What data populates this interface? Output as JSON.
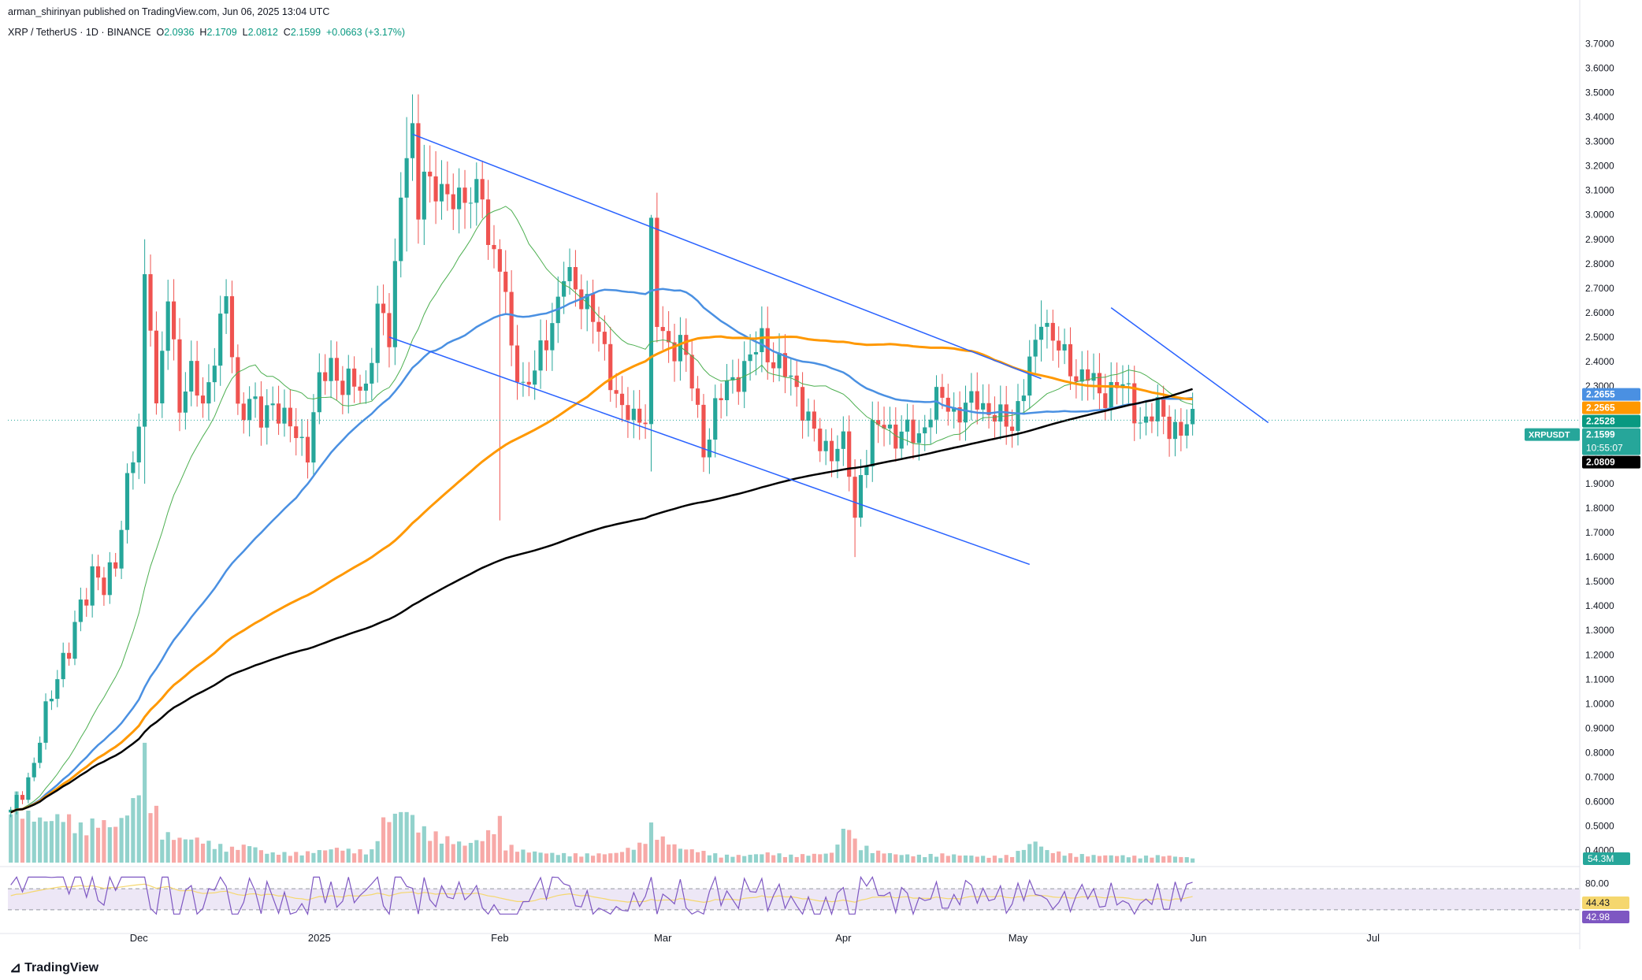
{
  "header": {
    "publisher": "arman_shirinyan published on TradingView.com, Jun 06, 2025 13:04 UTC",
    "symbol": "XRP / TetherUS · 1D · BINANCE",
    "o_label": "O",
    "o": "2.0936",
    "h_label": "H",
    "h": "2.1709",
    "l_label": "L",
    "l": "2.0812",
    "c_label": "C",
    "c": "2.1599",
    "change": "+0.0663 (+3.17%)"
  },
  "footer": {
    "brand": "TradingView"
  },
  "colors": {
    "up": "#26a69a",
    "down": "#ef5350",
    "up_vol": "#92d2cc",
    "down_vol": "#f7a9a7",
    "ma_green": "#4caf50",
    "ma_blue": "#4a90e2",
    "ma_orange": "#ff9800",
    "ma_black": "#000000",
    "trendline": "#2962ff",
    "rsi_line": "#7e57c2",
    "rsi_ma": "#f5d76e",
    "rsi_band": "#ede7f6"
  },
  "chart_data": {
    "type": "candlestick",
    "ylim": [
      0.35,
      3.75
    ],
    "price_ticks": [
      "3.7000",
      "3.6000",
      "3.5000",
      "3.4000",
      "3.3000",
      "3.2000",
      "3.1000",
      "3.0000",
      "2.9000",
      "2.8000",
      "2.7000",
      "2.6000",
      "2.5000",
      "2.4000",
      "2.3000",
      "2.2000",
      "2.1000",
      "2.0000",
      "1.9000",
      "1.8000",
      "1.7000",
      "1.6000",
      "1.5000",
      "1.4000",
      "1.3000",
      "1.2000",
      "1.1000",
      "1.0000",
      "0.9000",
      "0.8000",
      "0.7000",
      "0.6000",
      "0.5000",
      "0.4000"
    ],
    "x_labels": [
      {
        "label": "Dec",
        "day": 22
      },
      {
        "label": "2025",
        "day": 53
      },
      {
        "label": "Feb",
        "day": 84
      },
      {
        "label": "Mar",
        "day": 112
      },
      {
        "label": "Apr",
        "day": 143
      },
      {
        "label": "May",
        "day": 173
      },
      {
        "label": "Jun",
        "day": 204
      },
      {
        "label": "Jul",
        "day": 234
      }
    ],
    "markers": [
      {
        "label": "XRPUSDT",
        "value": "2.1599",
        "extra": "10:55:07",
        "y": 2.1599,
        "color": "#26a69a"
      },
      {
        "label": "",
        "value": "2.2655",
        "y": 2.2655,
        "color": "#4a90e2"
      },
      {
        "label": "",
        "value": "2.2565",
        "y": 2.2565,
        "color": "#ff9800"
      },
      {
        "label": "",
        "value": "2.2528",
        "y": 2.2528,
        "color": "#089981"
      },
      {
        "label": "",
        "value": "2.0809",
        "y": 2.0809,
        "color": "#000000"
      }
    ],
    "volume_label": "54.3M",
    "rsi": {
      "value": "42.98",
      "ma": "44.43",
      "upper": "80.00",
      "levels": [
        70,
        30
      ]
    },
    "anchors": [
      [
        0,
        0.55
      ],
      [
        2,
        0.65
      ],
      [
        4,
        0.75
      ],
      [
        6,
        0.95
      ],
      [
        8,
        1.15
      ],
      [
        10,
        1.2
      ],
      [
        12,
        1.4
      ],
      [
        14,
        1.55
      ],
      [
        16,
        1.45
      ],
      [
        18,
        1.6
      ],
      [
        20,
        1.9
      ],
      [
        22,
        2.1
      ],
      [
        23,
        2.75
      ],
      [
        24,
        2.6
      ],
      [
        25,
        2.2
      ],
      [
        27,
        2.65
      ],
      [
        29,
        2.25
      ],
      [
        31,
        2.35
      ],
      [
        33,
        2.2
      ],
      [
        35,
        2.45
      ],
      [
        37,
        2.65
      ],
      [
        39,
        2.2
      ],
      [
        41,
        2.25
      ],
      [
        43,
        2.15
      ],
      [
        45,
        2.25
      ],
      [
        47,
        2.15
      ],
      [
        49,
        2.1
      ],
      [
        51,
        2.05
      ],
      [
        53,
        2.3
      ],
      [
        55,
        2.4
      ],
      [
        57,
        2.3
      ],
      [
        59,
        2.3
      ],
      [
        61,
        2.3
      ],
      [
        63,
        2.6
      ],
      [
        65,
        2.5
      ],
      [
        67,
        3.1
      ],
      [
        68,
        3.25
      ],
      [
        69,
        3.3
      ],
      [
        70,
        3.0
      ],
      [
        71,
        3.2
      ],
      [
        73,
        3.1
      ],
      [
        75,
        3.05
      ],
      [
        77,
        3.1
      ],
      [
        79,
        3.05
      ],
      [
        81,
        3.1
      ],
      [
        82,
        2.9
      ],
      [
        84,
        2.8
      ],
      [
        86,
        2.45
      ],
      [
        88,
        2.3
      ],
      [
        90,
        2.35
      ],
      [
        92,
        2.5
      ],
      [
        94,
        2.65
      ],
      [
        95,
        2.75
      ],
      [
        97,
        2.7
      ],
      [
        99,
        2.65
      ],
      [
        101,
        2.5
      ],
      [
        103,
        2.35
      ],
      [
        105,
        2.2
      ],
      [
        107,
        2.15
      ],
      [
        109,
        2.2
      ],
      [
        110,
        2.95
      ],
      [
        111,
        2.55
      ],
      [
        113,
        2.45
      ],
      [
        115,
        2.5
      ],
      [
        117,
        2.3
      ],
      [
        119,
        2.05
      ],
      [
        121,
        2.2
      ],
      [
        123,
        2.3
      ],
      [
        125,
        2.35
      ],
      [
        127,
        2.4
      ],
      [
        129,
        2.5
      ],
      [
        131,
        2.4
      ],
      [
        133,
        2.35
      ],
      [
        135,
        2.3
      ],
      [
        137,
        2.15
      ],
      [
        139,
        2.05
      ],
      [
        141,
        2.05
      ],
      [
        143,
        2.05
      ],
      [
        144,
        1.95
      ],
      [
        145,
        1.75
      ],
      [
        146,
        1.95
      ],
      [
        148,
        2.1
      ],
      [
        150,
        2.15
      ],
      [
        152,
        2.1
      ],
      [
        154,
        2.1
      ],
      [
        156,
        2.1
      ],
      [
        158,
        2.2
      ],
      [
        160,
        2.25
      ],
      [
        162,
        2.2
      ],
      [
        164,
        2.2
      ],
      [
        166,
        2.25
      ],
      [
        168,
        2.2
      ],
      [
        170,
        2.15
      ],
      [
        172,
        2.15
      ],
      [
        174,
        2.3
      ],
      [
        176,
        2.45
      ],
      [
        177,
        2.6
      ],
      [
        179,
        2.5
      ],
      [
        181,
        2.4
      ],
      [
        183,
        2.35
      ],
      [
        185,
        2.35
      ],
      [
        187,
        2.25
      ],
      [
        189,
        2.3
      ],
      [
        191,
        2.3
      ],
      [
        193,
        2.2
      ],
      [
        195,
        2.15
      ],
      [
        197,
        2.2
      ],
      [
        199,
        2.15
      ],
      [
        201,
        2.1
      ],
      [
        203,
        2.16
      ]
    ],
    "volume_anchors": [
      [
        0,
        0.6
      ],
      [
        3,
        0.4
      ],
      [
        6,
        0.35
      ],
      [
        9,
        0.4
      ],
      [
        12,
        0.3
      ],
      [
        15,
        0.35
      ],
      [
        18,
        0.3
      ],
      [
        21,
        0.5
      ],
      [
        23,
        0.9
      ],
      [
        24,
        0.6
      ],
      [
        26,
        0.25
      ],
      [
        29,
        0.2
      ],
      [
        32,
        0.2
      ],
      [
        35,
        0.15
      ],
      [
        38,
        0.12
      ],
      [
        41,
        0.15
      ],
      [
        44,
        0.08
      ],
      [
        47,
        0.08
      ],
      [
        50,
        0.08
      ],
      [
        53,
        0.1
      ],
      [
        56,
        0.12
      ],
      [
        59,
        0.1
      ],
      [
        62,
        0.1
      ],
      [
        64,
        0.35
      ],
      [
        66,
        0.4
      ],
      [
        68,
        0.45
      ],
      [
        70,
        0.3
      ],
      [
        72,
        0.25
      ],
      [
        75,
        0.2
      ],
      [
        78,
        0.15
      ],
      [
        81,
        0.2
      ],
      [
        84,
        0.35
      ],
      [
        85,
        0.15
      ],
      [
        88,
        0.1
      ],
      [
        92,
        0.08
      ],
      [
        96,
        0.07
      ],
      [
        100,
        0.07
      ],
      [
        104,
        0.08
      ],
      [
        108,
        0.15
      ],
      [
        110,
        0.3
      ],
      [
        112,
        0.2
      ],
      [
        115,
        0.12
      ],
      [
        118,
        0.1
      ],
      [
        122,
        0.06
      ],
      [
        126,
        0.06
      ],
      [
        130,
        0.08
      ],
      [
        134,
        0.06
      ],
      [
        138,
        0.07
      ],
      [
        141,
        0.08
      ],
      [
        144,
        0.35
      ],
      [
        145,
        0.18
      ],
      [
        148,
        0.1
      ],
      [
        152,
        0.07
      ],
      [
        156,
        0.06
      ],
      [
        160,
        0.07
      ],
      [
        164,
        0.06
      ],
      [
        168,
        0.05
      ],
      [
        172,
        0.06
      ],
      [
        176,
        0.18
      ],
      [
        178,
        0.1
      ],
      [
        182,
        0.07
      ],
      [
        186,
        0.06
      ],
      [
        190,
        0.06
      ],
      [
        194,
        0.05
      ],
      [
        198,
        0.06
      ],
      [
        203,
        0.04
      ]
    ],
    "wicks_highlight": [
      [
        23,
        2.9,
        1.9
      ],
      [
        68,
        3.4,
        2.85
      ],
      [
        84,
        2.9,
        1.75
      ],
      [
        110,
        3.0,
        1.95
      ],
      [
        145,
        2.0,
        1.6
      ],
      [
        177,
        2.65,
        2.4
      ]
    ],
    "moving_averages": [
      {
        "name": "",
        "color": "#4caf50",
        "width": 1,
        "period": 20
      },
      {
        "name": "",
        "color": "#4a90e2",
        "width": 2.5,
        "period": 50
      },
      {
        "name": "",
        "color": "#ff9800",
        "width": 3,
        "period": 100
      },
      {
        "name": "",
        "color": "#000000",
        "width": 2.5,
        "period": 200
      }
    ],
    "trendlines": [
      {
        "x1": 69,
        "y1": 3.33,
        "x2": 177,
        "y2": 2.33
      },
      {
        "x1": 65,
        "y1": 2.5,
        "x2": 175,
        "y2": 1.57
      },
      {
        "x1": 189,
        "y1": 2.62,
        "x2": 216,
        "y2": 2.15
      }
    ]
  }
}
